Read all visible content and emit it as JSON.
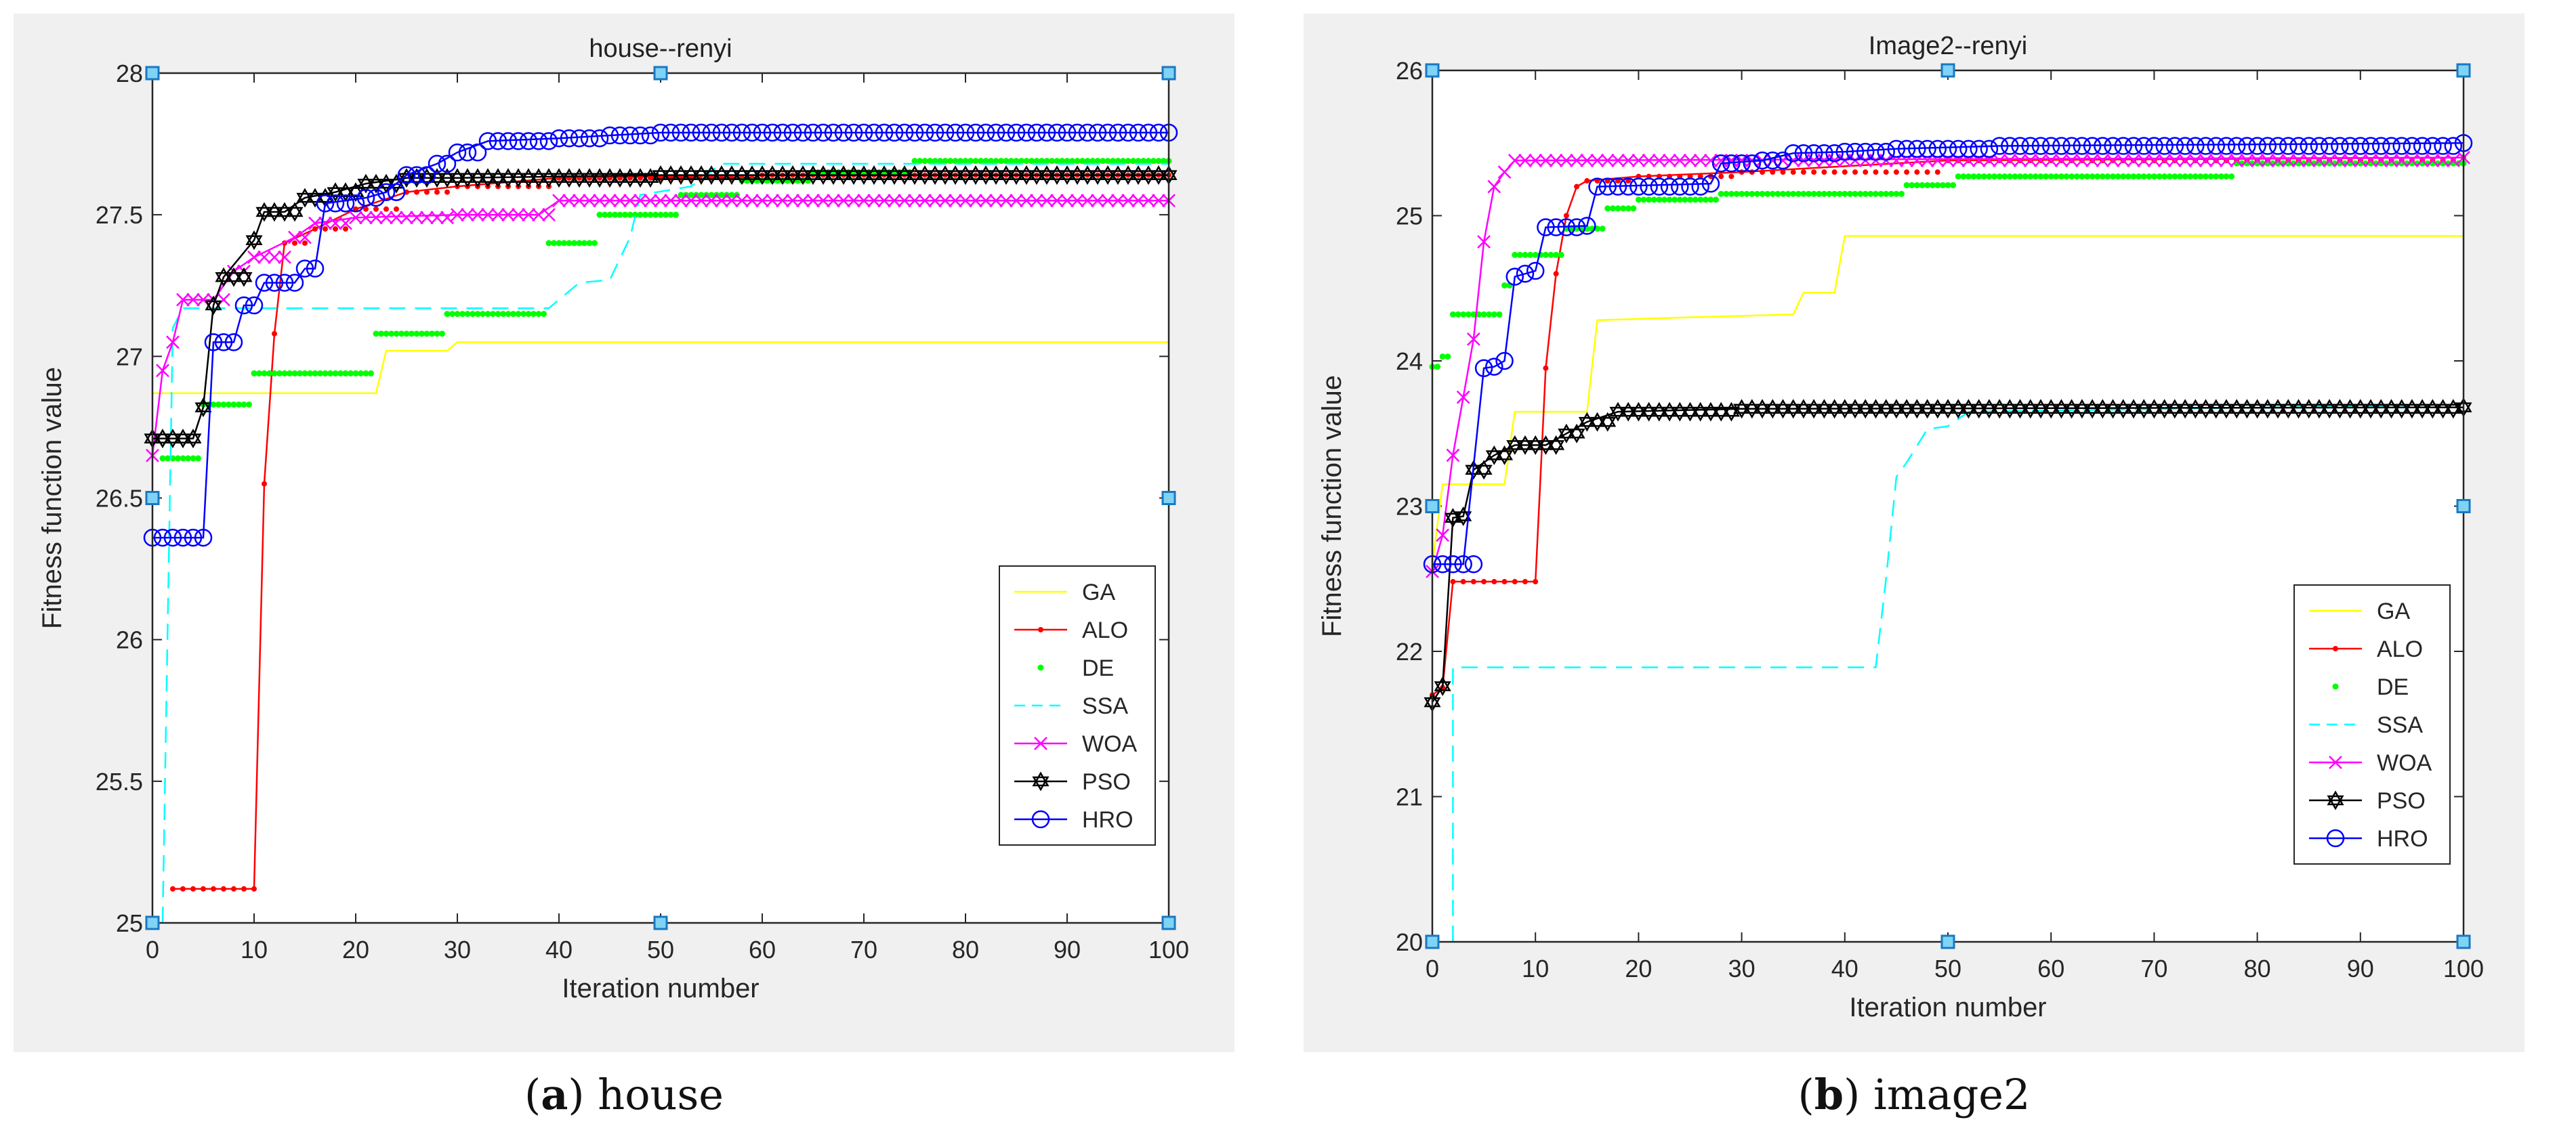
{
  "captions": [
    {
      "letter": "a",
      "text": "house"
    },
    {
      "letter": "b",
      "text": "image2"
    }
  ],
  "chart_data": [
    {
      "type": "line",
      "title": "house--renyi",
      "xlabel": "Iteration number",
      "ylabel": "Fitness function value",
      "xlim": [
        0,
        100
      ],
      "ylim": [
        25,
        28
      ],
      "xticks": [
        0,
        10,
        20,
        30,
        40,
        50,
        60,
        70,
        80,
        90,
        100
      ],
      "yticks": [
        25,
        25.5,
        26,
        26.5,
        27,
        27.5,
        28
      ],
      "ytick_labels": [
        "25",
        "25.5",
        "26",
        "26.5",
        "27",
        "27.5",
        "28"
      ],
      "legend_position": "lower-right",
      "series": [
        {
          "name": "GA",
          "color": "#ffff00",
          "style": "solid",
          "marker": "none",
          "points": [
            [
              0,
              26.87
            ],
            [
              22,
              26.87
            ],
            [
              23,
              27.02
            ],
            [
              29,
              27.02
            ],
            [
              30,
              27.05
            ],
            [
              100,
              27.05
            ]
          ]
        },
        {
          "name": "ALO",
          "color": "#ff0000",
          "style": "solid",
          "marker": "dot",
          "points": [
            [
              2,
              25.12
            ],
            [
              10,
              25.12
            ],
            [
              11,
              26.55
            ],
            [
              12,
              27.08
            ],
            [
              13,
              27.4
            ],
            [
              16,
              27.45
            ],
            [
              20,
              27.52
            ],
            [
              25,
              27.58
            ],
            [
              30,
              27.6
            ],
            [
              40,
              27.63
            ],
            [
              60,
              27.64
            ],
            [
              100,
              27.64
            ]
          ]
        },
        {
          "name": "DE",
          "color": "#00ff00",
          "style": "dotted",
          "marker": "none",
          "points": [
            [
              1,
              26.64
            ],
            [
              4,
              26.64
            ],
            [
              5,
              26.83
            ],
            [
              9,
              26.83
            ],
            [
              10,
              26.94
            ],
            [
              21,
              26.94
            ],
            [
              22,
              27.08
            ],
            [
              28,
              27.08
            ],
            [
              29,
              27.15
            ],
            [
              38,
              27.15
            ],
            [
              39,
              27.4
            ],
            [
              43,
              27.4
            ],
            [
              44,
              27.5
            ],
            [
              51,
              27.5
            ],
            [
              52,
              27.57
            ],
            [
              57,
              27.57
            ],
            [
              58,
              27.62
            ],
            [
              64,
              27.62
            ],
            [
              65,
              27.65
            ],
            [
              74,
              27.65
            ],
            [
              75,
              27.69
            ],
            [
              100,
              27.69
            ]
          ]
        },
        {
          "name": "SSA",
          "color": "#00ffff",
          "style": "dashed",
          "marker": "none",
          "points": [
            [
              1,
              25.0
            ],
            [
              2,
              27.1
            ],
            [
              3,
              27.17
            ],
            [
              39,
              27.17
            ],
            [
              42,
              27.26
            ],
            [
              45,
              27.27
            ],
            [
              47,
              27.42
            ],
            [
              48,
              27.57
            ],
            [
              53,
              27.6
            ],
            [
              56,
              27.68
            ],
            [
              100,
              27.68
            ]
          ]
        },
        {
          "name": "WOA",
          "color": "#ff00ff",
          "style": "solid",
          "marker": "x",
          "points": [
            [
              0,
              26.65
            ],
            [
              1,
              26.95
            ],
            [
              2,
              27.05
            ],
            [
              3,
              27.2
            ],
            [
              6,
              27.2
            ],
            [
              8,
              27.3
            ],
            [
              10,
              27.35
            ],
            [
              14,
              27.42
            ],
            [
              16,
              27.47
            ],
            [
              20,
              27.49
            ],
            [
              30,
              27.5
            ],
            [
              38,
              27.5
            ],
            [
              40,
              27.55
            ],
            [
              100,
              27.55
            ]
          ]
        },
        {
          "name": "PSO",
          "color": "#000000",
          "style": "solid",
          "marker": "hexagram",
          "points": [
            [
              0,
              26.71
            ],
            [
              4,
              26.71
            ],
            [
              5,
              26.82
            ],
            [
              6,
              27.18
            ],
            [
              7,
              27.28
            ],
            [
              10,
              27.41
            ],
            [
              11,
              27.51
            ],
            [
              13,
              27.51
            ],
            [
              15,
              27.56
            ],
            [
              18,
              27.58
            ],
            [
              21,
              27.61
            ],
            [
              25,
              27.63
            ],
            [
              30,
              27.63
            ],
            [
              50,
              27.64
            ],
            [
              100,
              27.64
            ]
          ]
        },
        {
          "name": "HRO",
          "color": "#0000ff",
          "style": "solid",
          "marker": "circle",
          "points": [
            [
              0,
              26.36
            ],
            [
              5,
              26.36
            ],
            [
              6,
              27.05
            ],
            [
              8,
              27.05
            ],
            [
              9,
              27.18
            ],
            [
              10,
              27.18
            ],
            [
              11,
              27.26
            ],
            [
              14,
              27.26
            ],
            [
              15,
              27.31
            ],
            [
              16,
              27.31
            ],
            [
              17,
              27.54
            ],
            [
              21,
              27.56
            ],
            [
              23,
              27.58
            ],
            [
              25,
              27.64
            ],
            [
              28,
              27.68
            ],
            [
              30,
              27.72
            ],
            [
              33,
              27.76
            ],
            [
              40,
              27.77
            ],
            [
              45,
              27.78
            ],
            [
              50,
              27.79
            ],
            [
              100,
              27.79
            ]
          ]
        }
      ]
    },
    {
      "type": "line",
      "title": "Image2--renyi",
      "xlabel": "Iteration number",
      "ylabel": "Fitness function value",
      "xlim": [
        0,
        100
      ],
      "ylim": [
        20,
        26
      ],
      "xticks": [
        0,
        10,
        20,
        30,
        40,
        50,
        60,
        70,
        80,
        90,
        100
      ],
      "yticks": [
        20,
        21,
        22,
        23,
        24,
        25,
        26
      ],
      "ytick_labels": [
        "20",
        "21",
        "22",
        "23",
        "24",
        "25",
        "26"
      ],
      "legend_position": "lower-right",
      "series": [
        {
          "name": "GA",
          "color": "#ffff00",
          "style": "solid",
          "marker": "none",
          "points": [
            [
              0,
              22.6
            ],
            [
              1,
              23.15
            ],
            [
              7,
              23.15
            ],
            [
              8,
              23.65
            ],
            [
              15,
              23.65
            ],
            [
              16,
              24.28
            ],
            [
              25,
              24.3
            ],
            [
              35,
              24.32
            ],
            [
              36,
              24.47
            ],
            [
              39,
              24.47
            ],
            [
              40,
              24.86
            ],
            [
              100,
              24.86
            ]
          ]
        },
        {
          "name": "ALO",
          "color": "#ff0000",
          "style": "solid",
          "marker": "dot",
          "points": [
            [
              0,
              21.7
            ],
            [
              1,
              21.75
            ],
            [
              2,
              22.48
            ],
            [
              10,
              22.48
            ],
            [
              11,
              23.95
            ],
            [
              12,
              24.6
            ],
            [
              13,
              25.0
            ],
            [
              14,
              25.2
            ],
            [
              15,
              25.24
            ],
            [
              20,
              25.27
            ],
            [
              30,
              25.3
            ],
            [
              50,
              25.38
            ],
            [
              100,
              25.4
            ]
          ]
        },
        {
          "name": "DE",
          "color": "#00ff00",
          "style": "dotted",
          "marker": "none",
          "points": [
            [
              0,
              23.96
            ],
            [
              1,
              24.03
            ],
            [
              2,
              24.32
            ],
            [
              6,
              24.32
            ],
            [
              7,
              24.52
            ],
            [
              8,
              24.73
            ],
            [
              12,
              24.73
            ],
            [
              13,
              24.91
            ],
            [
              16,
              24.91
            ],
            [
              17,
              25.05
            ],
            [
              19,
              25.05
            ],
            [
              20,
              25.11
            ],
            [
              27,
              25.11
            ],
            [
              28,
              25.15
            ],
            [
              45,
              25.15
            ],
            [
              46,
              25.21
            ],
            [
              50,
              25.21
            ],
            [
              51,
              25.27
            ],
            [
              77,
              25.27
            ],
            [
              78,
              25.36
            ],
            [
              100,
              25.36
            ]
          ]
        },
        {
          "name": "SSA",
          "color": "#00ffff",
          "style": "dashed",
          "marker": "none",
          "points": [
            [
              2,
              20.0
            ],
            [
              2,
              21.89
            ],
            [
              43,
              21.89
            ],
            [
              44,
              22.5
            ],
            [
              45,
              23.2
            ],
            [
              46,
              23.3
            ],
            [
              48,
              23.53
            ],
            [
              50,
              23.55
            ],
            [
              52,
              23.65
            ],
            [
              100,
              23.7
            ]
          ]
        },
        {
          "name": "WOA",
          "color": "#ff00ff",
          "style": "solid",
          "marker": "x",
          "points": [
            [
              0,
              22.55
            ],
            [
              1,
              22.8
            ],
            [
              2,
              23.35
            ],
            [
              3,
              23.75
            ],
            [
              4,
              24.15
            ],
            [
              5,
              24.82
            ],
            [
              6,
              25.2
            ],
            [
              7,
              25.3
            ],
            [
              8,
              25.38
            ],
            [
              100,
              25.4
            ]
          ]
        },
        {
          "name": "PSO",
          "color": "#000000",
          "style": "solid",
          "marker": "hexagram",
          "points": [
            [
              0,
              21.65
            ],
            [
              1,
              21.76
            ],
            [
              2,
              22.92
            ],
            [
              3,
              22.93
            ],
            [
              4,
              23.25
            ],
            [
              6,
              23.35
            ],
            [
              8,
              23.42
            ],
            [
              11,
              23.42
            ],
            [
              13,
              23.5
            ],
            [
              15,
              23.58
            ],
            [
              18,
              23.65
            ],
            [
              30,
              23.67
            ],
            [
              100,
              23.68
            ]
          ]
        },
        {
          "name": "HRO",
          "color": "#0000ff",
          "style": "solid",
          "marker": "circle",
          "points": [
            [
              0,
              22.6
            ],
            [
              3,
              22.6
            ],
            [
              5,
              23.95
            ],
            [
              6,
              23.96
            ],
            [
              7,
              24.0
            ],
            [
              8,
              24.58
            ],
            [
              9,
              24.6
            ],
            [
              10,
              24.62
            ],
            [
              11,
              24.92
            ],
            [
              15,
              24.93
            ],
            [
              16,
              25.2
            ],
            [
              27,
              25.22
            ],
            [
              28,
              25.36
            ],
            [
              32,
              25.38
            ],
            [
              35,
              25.43
            ],
            [
              40,
              25.44
            ],
            [
              45,
              25.46
            ],
            [
              55,
              25.48
            ],
            [
              100,
              25.5
            ]
          ]
        }
      ]
    }
  ]
}
